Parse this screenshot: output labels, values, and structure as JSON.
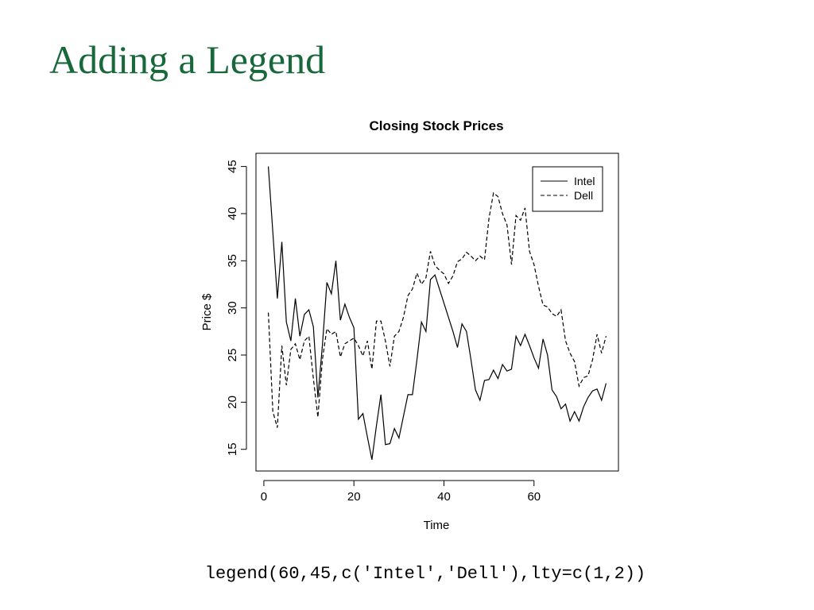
{
  "slide": {
    "title": "Adding a Legend",
    "code": "legend(60,45,c('Intel','Dell'),lty=c(1,2))"
  },
  "chart_data": {
    "type": "line",
    "title": "Closing Stock Prices",
    "x_label": "Time",
    "y_label": "Price $",
    "x": [
      1,
      2,
      3,
      4,
      5,
      6,
      7,
      8,
      9,
      10,
      11,
      12,
      13,
      14,
      15,
      16,
      17,
      18,
      19,
      20,
      21,
      22,
      23,
      24,
      25,
      26,
      27,
      28,
      29,
      30,
      31,
      32,
      33,
      34,
      35,
      36,
      37,
      38,
      39,
      40,
      41,
      42,
      43,
      44,
      45,
      46,
      47,
      48,
      49,
      50,
      51,
      52,
      53,
      54,
      55,
      56,
      57,
      58,
      59,
      60,
      61,
      62,
      63,
      64,
      65,
      66,
      67,
      68,
      69,
      70,
      71,
      72,
      73,
      74,
      75,
      76
    ],
    "series": [
      {
        "name": "Intel",
        "color": "#000000",
        "dash": "solid",
        "values": [
          45,
          38,
          31,
          37,
          28.5,
          26.5,
          31,
          27,
          29.3,
          29.8,
          28,
          20.5,
          26,
          32.7,
          31.5,
          35,
          28.7,
          30.4,
          29,
          27.9,
          18.2,
          18.8,
          16.3,
          13.9,
          17.5,
          20.8,
          15.5,
          15.6,
          17.2,
          16.2,
          18.5,
          20.8,
          20.8,
          24.5,
          28.5,
          27.5,
          33,
          33.5,
          32,
          30.5,
          29,
          27.5,
          25.8,
          28.3,
          27.5,
          24.5,
          21.3,
          20.2,
          22.3,
          22.4,
          23.4,
          22.5,
          24,
          23.3,
          23.5,
          27,
          26,
          27.2,
          26,
          24.7,
          23.6,
          26.7,
          25,
          21.3,
          20.6,
          19.3,
          19.8,
          18,
          19,
          18,
          19.5,
          20.5,
          21.2,
          21.4,
          20.2,
          22
        ]
      },
      {
        "name": "Dell",
        "color": "#000000",
        "dash": "dashed",
        "values": [
          29.5,
          19,
          17.3,
          26,
          21.8,
          25.6,
          26.2,
          24.5,
          26.5,
          27,
          22.5,
          18.4,
          24.5,
          27.8,
          27.2,
          27.5,
          24.8,
          26.2,
          26.5,
          26.8,
          26,
          24.9,
          26.5,
          23.5,
          28.6,
          28.6,
          26.5,
          23.8,
          27,
          27.5,
          29,
          31.3,
          32,
          33.7,
          32.5,
          33.2,
          36,
          34.5,
          34,
          33.6,
          32.6,
          33.4,
          34.9,
          35.2,
          35.9,
          35.5,
          35,
          35.5,
          35.1,
          39.5,
          42.2,
          41.8,
          40,
          38.8,
          34.6,
          39.8,
          39.3,
          40.6,
          36,
          34.6,
          32.3,
          30.3,
          30.1,
          29.4,
          29.1,
          29.8,
          26.5,
          25.2,
          24.3,
          21.7,
          22.6,
          22.8,
          24.5,
          27.2,
          25.2,
          27
        ]
      }
    ],
    "xlim": [
      -1.75,
      78.75
    ],
    "ylim": [
      12.7,
      46.4
    ],
    "xticks": [
      0,
      20,
      40,
      60
    ],
    "yticks": [
      15,
      20,
      25,
      30,
      35,
      40,
      45
    ],
    "legend": "top-right"
  }
}
